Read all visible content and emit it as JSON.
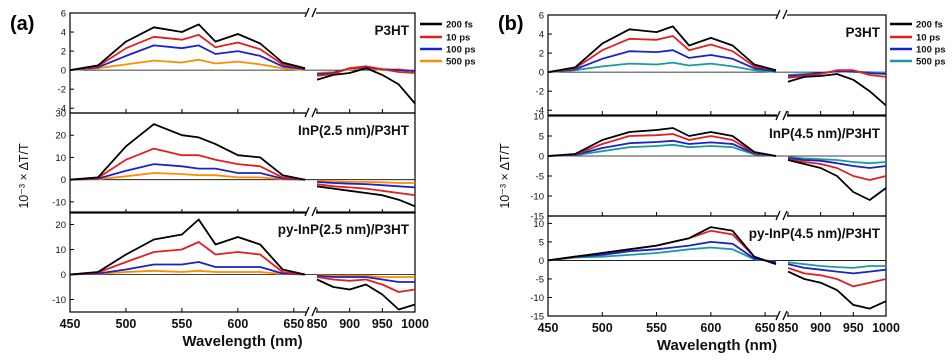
{
  "figure": {
    "panels": [
      {
        "letter": "(a)",
        "xlabel": "Wavelength (nm)",
        "ylabel": "10⁻³ × ΔT/T",
        "legend": [
          {
            "label": "200 fs",
            "color": "#000000"
          },
          {
            "label": "10 ps",
            "color": "#e02020"
          },
          {
            "label": "100 ps",
            "color": "#1a22c8"
          },
          {
            "label": "500 ps",
            "color": "#ff8c00"
          }
        ],
        "xticks_left": [
          "450",
          "500",
          "550",
          "600",
          "650",
          "850"
        ],
        "xticks_right": [
          "900",
          "950",
          "1000"
        ],
        "subplots": [
          {
            "title": "P3HT",
            "yticks": [
              "6",
              "4",
              "2",
              "0",
              "-2",
              "-4"
            ]
          },
          {
            "title": "InP(2.5 nm)/P3HT",
            "yticks": [
              "30",
              "20",
              "10",
              "0",
              "-10"
            ]
          },
          {
            "title": "py-InP(2.5 nm)/P3HT",
            "yticks": [
              "20",
              "10",
              "0",
              "-10"
            ]
          }
        ]
      },
      {
        "letter": "(b)",
        "xlabel": "Wavelength (nm)",
        "ylabel": "10⁻³ × ΔT/T",
        "legend": [
          {
            "label": "200 fs",
            "color": "#000000"
          },
          {
            "label": "10 ps",
            "color": "#e02020"
          },
          {
            "label": "100 ps",
            "color": "#1a22c8"
          },
          {
            "label": "500 ps",
            "color": "#1a9c9c"
          }
        ],
        "xticks_left": [
          "450",
          "500",
          "550",
          "600",
          "650",
          "850"
        ],
        "xticks_right": [
          "900",
          "950",
          "1000"
        ],
        "subplots": [
          {
            "title": "P3HT",
            "yticks": [
              "6",
              "4",
              "2",
              "0",
              "-2",
              "-4"
            ]
          },
          {
            "title": "InP(4.5 nm)/P3HT",
            "yticks": [
              "10",
              "5",
              "0",
              "-5",
              "-10",
              "-15"
            ]
          },
          {
            "title": "py-InP(4.5 nm)/P3HT",
            "yticks": [
              "10",
              "5",
              "0",
              "-5",
              "-10",
              "-15"
            ]
          }
        ]
      }
    ]
  },
  "chart_data": [
    {
      "type": "line",
      "panel": "(a)",
      "title": "P3HT",
      "xlabel": "Wavelength (nm)",
      "ylabel": "10⁻³ × ΔT/T",
      "x_segments": [
        [
          450,
          660
        ],
        [
          850,
          1000
        ]
      ],
      "ylim": [
        -4.5,
        6
      ],
      "x": [
        450,
        475,
        500,
        525,
        550,
        565,
        580,
        600,
        620,
        640,
        660,
        850,
        875,
        900,
        925,
        950,
        975,
        1000
      ],
      "series": [
        {
          "name": "200 fs",
          "values": [
            0,
            0.5,
            3.0,
            4.5,
            4.0,
            4.8,
            3.0,
            3.8,
            2.8,
            0.8,
            0.2,
            -1.0,
            -0.5,
            -0.3,
            0.2,
            -0.5,
            -1.5,
            -3.5
          ]
        },
        {
          "name": "10 ps",
          "values": [
            0,
            0.4,
            2.3,
            3.5,
            3.2,
            3.7,
            2.4,
            2.9,
            2.2,
            0.6,
            0.2,
            -0.6,
            -0.4,
            0.2,
            0.4,
            0.1,
            -0.2,
            -0.3
          ]
        },
        {
          "name": "100 ps",
          "values": [
            0,
            0.3,
            1.5,
            2.6,
            2.3,
            2.6,
            1.7,
            2.0,
            1.5,
            0.4,
            0.1,
            -0.4,
            -0.3,
            0.2,
            0.3,
            0.1,
            0.0,
            -0.1
          ]
        },
        {
          "name": "500 ps",
          "values": [
            0,
            0.2,
            0.6,
            1.0,
            0.8,
            1.1,
            0.7,
            0.9,
            0.6,
            0.2,
            0.0,
            -0.3,
            -0.2,
            0.1,
            0.2,
            0.0,
            0.1,
            -0.1
          ]
        }
      ]
    },
    {
      "type": "line",
      "panel": "(a)",
      "title": "InP(2.5 nm)/P3HT",
      "x_segments": [
        [
          450,
          660
        ],
        [
          850,
          1000
        ]
      ],
      "ylim": [
        -15,
        30
      ],
      "x": [
        450,
        475,
        500,
        525,
        550,
        565,
        580,
        600,
        620,
        640,
        660,
        850,
        875,
        900,
        925,
        950,
        975,
        1000
      ],
      "series": [
        {
          "name": "200 fs",
          "values": [
            0,
            1,
            15,
            25,
            20,
            19,
            16,
            11,
            10,
            2,
            0,
            -3,
            -4,
            -5,
            -6,
            -7,
            -9,
            -12
          ]
        },
        {
          "name": "10 ps",
          "values": [
            0,
            0.8,
            9,
            14,
            11,
            11,
            9,
            7,
            6,
            1,
            0,
            -2,
            -3,
            -3.5,
            -4,
            -5,
            -6,
            -7
          ]
        },
        {
          "name": "100 ps",
          "values": [
            0,
            0.5,
            4,
            7,
            6,
            5,
            5,
            3,
            3,
            0.5,
            0,
            -1,
            -1.5,
            -1.8,
            -2,
            -2.5,
            -3,
            -3.5
          ]
        },
        {
          "name": "500 ps",
          "values": [
            0,
            0.2,
            1.5,
            3,
            2.5,
            2,
            2,
            1,
            1,
            0.2,
            0,
            -0.5,
            -0.8,
            -1,
            -1,
            -1.2,
            -1.5,
            -1.5
          ]
        }
      ]
    },
    {
      "type": "line",
      "panel": "(a)",
      "title": "py-InP(2.5 nm)/P3HT",
      "x_segments": [
        [
          450,
          660
        ],
        [
          850,
          1000
        ]
      ],
      "ylim": [
        -15,
        25
      ],
      "x": [
        450,
        475,
        500,
        525,
        550,
        565,
        580,
        600,
        620,
        640,
        660,
        850,
        875,
        900,
        925,
        950,
        975,
        1000
      ],
      "series": [
        {
          "name": "200 fs",
          "values": [
            0,
            1,
            8,
            14,
            16,
            22,
            12,
            15,
            12,
            2,
            0,
            -2,
            -5,
            -6,
            -4,
            -8,
            -14,
            -12
          ]
        },
        {
          "name": "10 ps",
          "values": [
            0,
            0.8,
            5,
            9,
            10,
            13,
            8,
            9,
            8,
            1,
            0,
            -1,
            -2,
            -2.5,
            -2,
            -4,
            -7,
            -6
          ]
        },
        {
          "name": "100 ps",
          "values": [
            0,
            0.4,
            2,
            4,
            4,
            5,
            3,
            3,
            3,
            0.4,
            0,
            -0.5,
            -1,
            -1,
            -1,
            -2,
            -3,
            -3
          ]
        },
        {
          "name": "500 ps",
          "values": [
            0,
            0.3,
            1,
            1.5,
            1,
            1.5,
            1,
            1,
            1,
            0.2,
            0,
            -0.3,
            -0.5,
            -0.5,
            -0.5,
            -1,
            -1,
            -1
          ]
        }
      ]
    },
    {
      "type": "line",
      "panel": "(b)",
      "title": "P3HT",
      "x_segments": [
        [
          450,
          660
        ],
        [
          850,
          1000
        ]
      ],
      "ylim": [
        -4.5,
        6
      ],
      "x": [
        450,
        475,
        500,
        525,
        550,
        565,
        580,
        600,
        620,
        640,
        660,
        850,
        875,
        900,
        925,
        950,
        975,
        1000
      ],
      "series": [
        {
          "name": "200 fs",
          "values": [
            0,
            0.5,
            3.0,
            4.5,
            4.2,
            4.8,
            2.8,
            3.6,
            2.8,
            0.8,
            0.2,
            -1.0,
            -0.5,
            -0.4,
            -0.2,
            -0.8,
            -2.0,
            -3.5
          ]
        },
        {
          "name": "10 ps",
          "values": [
            0,
            0.4,
            2.3,
            3.5,
            3.4,
            3.8,
            2.3,
            2.9,
            2.2,
            0.6,
            0.2,
            -0.6,
            -0.4,
            -0.2,
            0.2,
            0.2,
            -0.3,
            -0.5
          ]
        },
        {
          "name": "100 ps",
          "values": [
            0,
            0.3,
            1.4,
            2.2,
            2.1,
            2.3,
            1.5,
            1.8,
            1.4,
            0.4,
            0.1,
            -0.4,
            -0.3,
            -0.1,
            0.1,
            0.1,
            -0.1,
            -0.2
          ]
        },
        {
          "name": "500 ps",
          "values": [
            0,
            0.2,
            0.6,
            0.9,
            0.8,
            1.0,
            0.7,
            0.9,
            0.6,
            0.2,
            0.0,
            -0.3,
            -0.2,
            -0.1,
            0.1,
            0.0,
            0.0,
            -0.1
          ]
        }
      ]
    },
    {
      "type": "line",
      "panel": "(b)",
      "title": "InP(4.5 nm)/P3HT",
      "x_segments": [
        [
          450,
          660
        ],
        [
          850,
          1000
        ]
      ],
      "ylim": [
        -15,
        10
      ],
      "x": [
        450,
        475,
        500,
        525,
        550,
        565,
        580,
        600,
        620,
        640,
        660,
        850,
        875,
        900,
        925,
        950,
        975,
        1000
      ],
      "series": [
        {
          "name": "200 fs",
          "values": [
            0,
            0.5,
            4,
            6,
            6.5,
            7,
            5,
            6,
            5,
            1,
            0,
            -1,
            -2,
            -3,
            -5,
            -9,
            -11,
            -8
          ]
        },
        {
          "name": "10 ps",
          "values": [
            0,
            0.4,
            3,
            5,
            5.2,
            5.5,
            4,
            5,
            4,
            0.8,
            0,
            -0.8,
            -1.5,
            -2,
            -3,
            -5,
            -6,
            -5
          ]
        },
        {
          "name": "100 ps",
          "values": [
            0,
            0.3,
            2,
            3.2,
            3.5,
            3.8,
            3,
            3.4,
            3,
            0.6,
            0,
            -0.5,
            -1,
            -1.2,
            -1.8,
            -2.5,
            -3,
            -2.5
          ]
        },
        {
          "name": "500 ps",
          "values": [
            0,
            0.2,
            1.2,
            2.2,
            2.5,
            2.8,
            2.2,
            2.5,
            2.2,
            0.4,
            0,
            -0.3,
            -0.6,
            -0.8,
            -1,
            -1.5,
            -1.8,
            -1.5
          ]
        }
      ]
    },
    {
      "type": "line",
      "panel": "(b)",
      "title": "py-InP(4.5 nm)/P3HT",
      "x_segments": [
        [
          450,
          660
        ],
        [
          850,
          1000
        ]
      ],
      "ylim": [
        -15,
        12
      ],
      "x": [
        450,
        475,
        500,
        525,
        550,
        565,
        580,
        600,
        620,
        640,
        660,
        850,
        875,
        900,
        925,
        950,
        975,
        1000
      ],
      "series": [
        {
          "name": "200 fs",
          "values": [
            0,
            1,
            2,
            3,
            4,
            5,
            6,
            9,
            8,
            1,
            -1,
            -3,
            -5,
            -6,
            -8,
            -12,
            -13,
            -11
          ]
        },
        {
          "name": "10 ps",
          "values": [
            0,
            1,
            2,
            3,
            4,
            5,
            6,
            8,
            7,
            1,
            -1,
            -2,
            -3.5,
            -4,
            -5,
            -7,
            -6,
            -5
          ]
        },
        {
          "name": "100 ps",
          "values": [
            0,
            1,
            1.5,
            2.5,
            3,
            3.5,
            4,
            5,
            4.5,
            0.5,
            -0.5,
            -1,
            -2,
            -2.5,
            -3,
            -3.5,
            -3,
            -2.5
          ]
        },
        {
          "name": "500 ps",
          "values": [
            0,
            0.8,
            1,
            1.5,
            2,
            2.5,
            3,
            3.5,
            3,
            0.3,
            -0.3,
            -0.5,
            -1,
            -1.5,
            -1.8,
            -2,
            -1.5,
            -1.5
          ]
        }
      ]
    }
  ]
}
